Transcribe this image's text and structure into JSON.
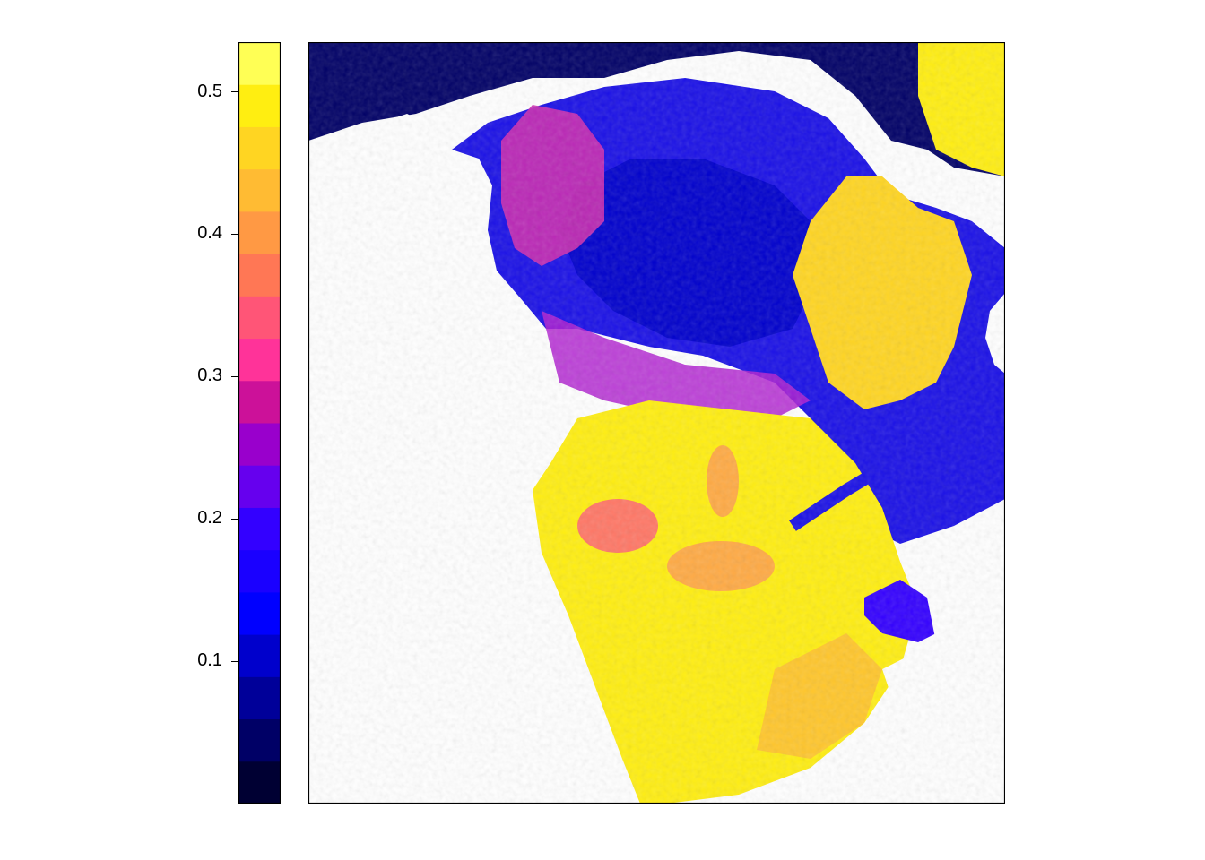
{
  "legend": {
    "min": 0.0,
    "max": 0.535,
    "ticks": [
      {
        "value": 0.1,
        "label": "0.1"
      },
      {
        "value": 0.2,
        "label": "0.2"
      },
      {
        "value": 0.3,
        "label": "0.3"
      },
      {
        "value": 0.4,
        "label": "0.4"
      },
      {
        "value": 0.5,
        "label": "0.5"
      }
    ],
    "colors": [
      "#000033",
      "#000066",
      "#000099",
      "#0000cc",
      "#0000ff",
      "#1a00ff",
      "#3300ff",
      "#6600ee",
      "#9900cc",
      "#cc1199",
      "#ff3399",
      "#ff5577",
      "#ff7755",
      "#ff9944",
      "#ffbb33",
      "#ffd522",
      "#ffee11",
      "#ffff55"
    ]
  }
}
